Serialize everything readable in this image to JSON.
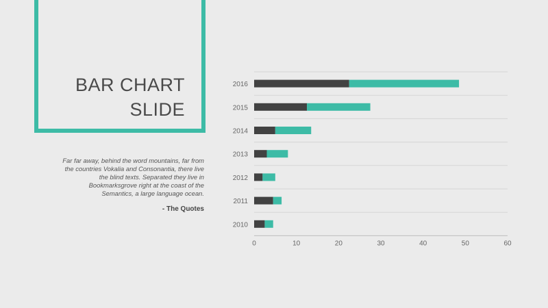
{
  "slide": {
    "title_line1": "BAR CHART",
    "title_line2": "SLIDE",
    "quote": "Far far away, behind the word mountains, far from the countries Vokalia and Consonantia, there live the blind texts. Separated they live in Bookmarksgrove right at the coast of the Semantics, a large language ocean.",
    "attribution": "- The Quotes"
  },
  "colors": {
    "accent": "#3dbba6",
    "dark": "#424242",
    "grid": "#d6d6d6"
  },
  "chart_data": {
    "type": "bar",
    "orientation": "horizontal",
    "stacked": true,
    "categories": [
      "2016",
      "2015",
      "2014",
      "2013",
      "2012",
      "2011",
      "2010"
    ],
    "series": [
      {
        "values": [
          22.5,
          12.5,
          5,
          3,
          2,
          4.5,
          2.5
        ]
      },
      {
        "values": [
          26,
          15,
          8.5,
          5,
          3,
          2,
          2
        ]
      }
    ],
    "xlim": [
      0,
      60
    ],
    "xticks": [
      0,
      10,
      20,
      30,
      40,
      50,
      60
    ],
    "title": "",
    "xlabel": "",
    "ylabel": "",
    "grid": true,
    "legend": "none"
  }
}
